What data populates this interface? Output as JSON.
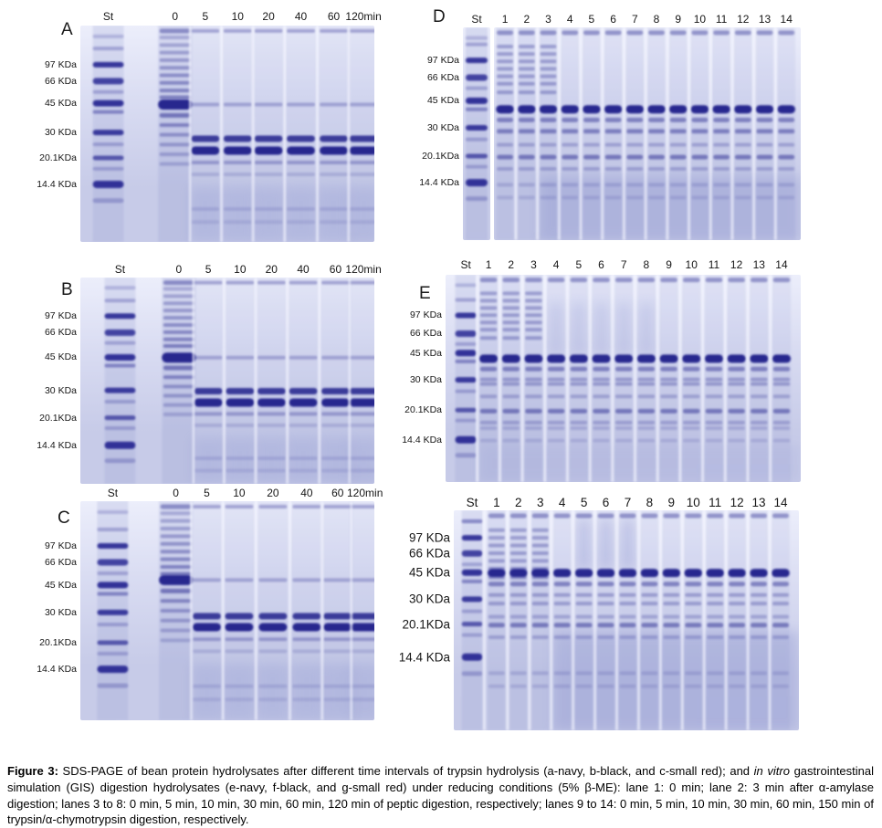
{
  "figure": {
    "caption": {
      "segments": [
        {
          "text": "Figure 3:",
          "bold": true
        },
        {
          "text": " SDS-PAGE of bean protein hydrolysates after different time intervals of trypsin hydrolysis (a-navy, b-black, and c-small red); and "
        },
        {
          "text": "in vitro",
          "italic": true
        },
        {
          "text": " gastrointestinal simulation (GIS) digestion hydrolysates (e-navy, f-black, and g-small red) under reducing conditions (5% β-ME): lane 1: 0 min; lane 2: 3 min after α-amylase digestion; lanes 3 to 8: 0 min, 5 min, 10 min, 30 min, 60 min, 120 min of peptic digestion, respectively; lanes 9 to 14: 0 min, 5 min, 10 min, 30 min, 60 min, 150 min of trypsin/α-chymotrypsin digestion, respectively."
        }
      ]
    },
    "colors": {
      "band_navy": "#20208c",
      "marker_navy": "#2a2a94",
      "gel_light": "#eceefb",
      "gel_mid": "#d9dcf2",
      "gel_dark": "#c7cbe8",
      "smear_blue": "#6b74c0"
    }
  },
  "panels": [
    {
      "id": "A",
      "letter": "A",
      "lane_labels": [
        "St",
        "0",
        "5",
        "10",
        "20",
        "40",
        "60",
        "120min"
      ],
      "mw_labels": [
        "97 KDa",
        "66 KDa",
        "45 KDa",
        "30 KDa",
        "20.1KDa",
        "14.4 KDa"
      ]
    },
    {
      "id": "B",
      "letter": "B",
      "lane_labels": [
        "St",
        "0",
        "5",
        "10",
        "20",
        "40",
        "60",
        "120min"
      ],
      "mw_labels": [
        "97 KDa",
        "66 KDa",
        "45 KDa",
        "30 KDa",
        "20.1KDa",
        "14.4 KDa"
      ]
    },
    {
      "id": "C",
      "letter": "C",
      "lane_labels": [
        "St",
        "0",
        "5",
        "10",
        "20",
        "40",
        "60",
        "120min"
      ],
      "mw_labels": [
        "97 KDa",
        "66 KDa",
        "45 KDa",
        "30 KDa",
        "20.1KDa",
        "14.4 KDa"
      ]
    },
    {
      "id": "D",
      "letter": "D",
      "lane_labels": [
        "St",
        "1",
        "2",
        "3",
        "4",
        "5",
        "6",
        "7",
        "8",
        "9",
        "10",
        "11",
        "12",
        "13",
        "14"
      ],
      "mw_labels": [
        "97 KDa",
        "66 KDa",
        "45 KDa",
        "30 KDa",
        "20.1KDa",
        "14.4 KDa"
      ]
    },
    {
      "id": "E",
      "letter": "E",
      "lane_labels": [
        "St",
        "1",
        "2",
        "3",
        "4",
        "5",
        "6",
        "7",
        "8",
        "9",
        "10",
        "11",
        "12",
        "13",
        "14"
      ],
      "mw_labels": [
        "97 KDa",
        "66 KDa",
        "45 KDa",
        "30 KDa",
        "20.1KDa",
        "14.4 KDa"
      ]
    },
    {
      "id": "F",
      "letter": "",
      "lane_labels": [
        "St",
        "1",
        "2",
        "3",
        "4",
        "5",
        "6",
        "7",
        "8",
        "9",
        "10",
        "11",
        "12",
        "13",
        "14"
      ],
      "mw_labels": [
        "97 KDa",
        "66 KDa",
        "45 KDa",
        "30 KDa",
        "20.1KDa",
        "14.4 KDa"
      ]
    }
  ]
}
